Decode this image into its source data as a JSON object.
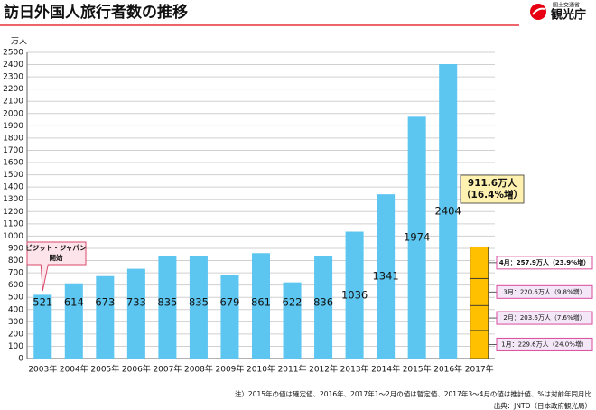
{
  "header": {
    "org": "国土交通省",
    "agency": "観光庁"
  },
  "chart_data": {
    "type": "bar",
    "title": "訪日外国人旅行者数の推移",
    "unit": "万人",
    "categories": [
      "2003年",
      "2004年",
      "2005年",
      "2006年",
      "2007年",
      "2008年",
      "2009年",
      "2010年",
      "2011年",
      "2012年",
      "2013年",
      "2014年",
      "2015年",
      "2016年",
      "2017年"
    ],
    "values": [
      521,
      614,
      673,
      733,
      835,
      835,
      679,
      861,
      622,
      836,
      1036,
      1341,
      1974,
      2404,
      null
    ],
    "color": "#5cc6f0",
    "stack": {
      "category": 14,
      "color": "#ffc000",
      "segments": [
        {
          "label": "1月：229.6万人（24.0%増）",
          "value": 229.6
        },
        {
          "label": "2月：203.6万人（7.6%増）",
          "value": 203.6
        },
        {
          "label": "3月：220.6万人（9.8%増）",
          "value": 220.6
        },
        {
          "label": "4月：257.9万人（23.9%増）",
          "value": 257.9
        }
      ]
    },
    "total_annotation": [
      "911.6万人",
      "（16.4%増）"
    ],
    "callout": [
      "ビジット・ジャパン",
      "開始"
    ],
    "ylim": [
      0,
      2500
    ],
    "yticks": [
      0,
      100,
      200,
      300,
      400,
      500,
      600,
      700,
      800,
      900,
      1000,
      1100,
      1200,
      1300,
      1400,
      1500,
      1600,
      1700,
      1800,
      1900,
      2000,
      2100,
      2200,
      2300,
      2400,
      2500
    ],
    "grid": true,
    "note": "注）2015年の値は確定値、2016年、2017年1～2月の値は暫定値、2017年3～4月の値は推計値、%は対前年同月比",
    "source": "出典：JNTO（日本政府観光局）"
  }
}
